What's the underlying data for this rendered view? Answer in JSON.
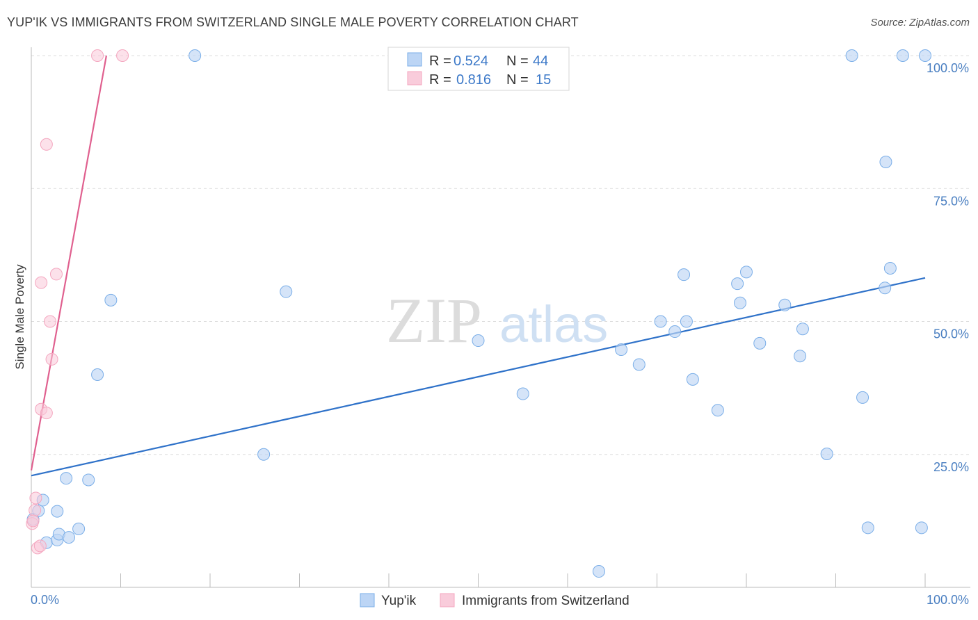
{
  "title": "YUP'IK VS IMMIGRANTS FROM SWITZERLAND SINGLE MALE POVERTY CORRELATION CHART",
  "source": "Source: ZipAtlas.com",
  "watermark": {
    "zip": "ZIP",
    "atlas": "atlas"
  },
  "chart_data": {
    "type": "scatter",
    "title": "YUP'IK VS IMMIGRANTS FROM SWITZERLAND SINGLE MALE POVERTY CORRELATION CHART",
    "xlabel": "",
    "ylabel": "Single Male Poverty",
    "xlim": [
      0,
      100
    ],
    "ylim": [
      0,
      102
    ],
    "x_tick_labels": [
      "0.0%",
      "100.0%"
    ],
    "y_ticks": [
      {
        "value": 25,
        "label": "25.0%"
      },
      {
        "value": 50,
        "label": "50.0%"
      },
      {
        "value": 75,
        "label": "75.0%"
      },
      {
        "value": 100,
        "label": "100.0%"
      }
    ],
    "grid": "horizontal dashed",
    "legend_placement": "top-center",
    "series": [
      {
        "name": "Yup'ik",
        "color": "#7aaee8",
        "line_color": "#2f72c9",
        "stats": {
          "r_label": "R =",
          "r": "0.524",
          "n_label": "N =",
          "n": "44"
        },
        "trend": {
          "x": [
            0,
            100
          ],
          "y": [
            21.0,
            58.2
          ]
        },
        "points": [
          {
            "x": 0.2,
            "y": 12.8
          },
          {
            "x": 0.8,
            "y": 14.4
          },
          {
            "x": 1.3,
            "y": 16.4
          },
          {
            "x": 2.9,
            "y": 14.3
          },
          {
            "x": 1.7,
            "y": 8.4
          },
          {
            "x": 2.9,
            "y": 8.9
          },
          {
            "x": 3.1,
            "y": 10.0
          },
          {
            "x": 4.2,
            "y": 9.4
          },
          {
            "x": 5.3,
            "y": 11.0
          },
          {
            "x": 3.9,
            "y": 20.5
          },
          {
            "x": 6.4,
            "y": 20.2
          },
          {
            "x": 7.4,
            "y": 40.0
          },
          {
            "x": 8.9,
            "y": 54.0
          },
          {
            "x": 18.3,
            "y": 100.0
          },
          {
            "x": 26.0,
            "y": 25.0
          },
          {
            "x": 28.5,
            "y": 55.6
          },
          {
            "x": 50.0,
            "y": 46.4
          },
          {
            "x": 55.0,
            "y": 36.4
          },
          {
            "x": 63.5,
            "y": 3.0
          },
          {
            "x": 66.0,
            "y": 44.7
          },
          {
            "x": 68.0,
            "y": 41.9
          },
          {
            "x": 70.4,
            "y": 50.0
          },
          {
            "x": 72.0,
            "y": 48.1
          },
          {
            "x": 73.0,
            "y": 58.8
          },
          {
            "x": 73.3,
            "y": 50.0
          },
          {
            "x": 74.0,
            "y": 39.1
          },
          {
            "x": 76.8,
            "y": 33.3
          },
          {
            "x": 79.0,
            "y": 57.1
          },
          {
            "x": 79.3,
            "y": 53.5
          },
          {
            "x": 80.0,
            "y": 59.3
          },
          {
            "x": 81.5,
            "y": 45.9
          },
          {
            "x": 84.3,
            "y": 53.1
          },
          {
            "x": 86.0,
            "y": 43.5
          },
          {
            "x": 86.3,
            "y": 48.6
          },
          {
            "x": 89.0,
            "y": 25.1
          },
          {
            "x": 91.8,
            "y": 100.0
          },
          {
            "x": 93.0,
            "y": 35.7
          },
          {
            "x": 93.6,
            "y": 11.2
          },
          {
            "x": 95.6,
            "y": 80.0
          },
          {
            "x": 95.5,
            "y": 56.3
          },
          {
            "x": 96.1,
            "y": 60.0
          },
          {
            "x": 97.5,
            "y": 100.0
          },
          {
            "x": 99.6,
            "y": 11.2
          },
          {
            "x": 100.0,
            "y": 100.0
          }
        ]
      },
      {
        "name": "Immigrants from Switzerland",
        "color": "#f4a6bf",
        "line_color": "#e0608f",
        "stats": {
          "r_label": "R =",
          "r": "0.816",
          "n_label": "N =",
          "n": "15"
        },
        "trend": {
          "x": [
            0,
            8.4
          ],
          "y": [
            22.0,
            100.0
          ]
        },
        "points": [
          {
            "x": 0.1,
            "y": 12.0
          },
          {
            "x": 0.4,
            "y": 14.5
          },
          {
            "x": 0.5,
            "y": 16.8
          },
          {
            "x": 0.7,
            "y": 7.4
          },
          {
            "x": 1.0,
            "y": 7.8
          },
          {
            "x": 1.1,
            "y": 33.5
          },
          {
            "x": 1.1,
            "y": 57.3
          },
          {
            "x": 1.7,
            "y": 83.3
          },
          {
            "x": 1.7,
            "y": 32.8
          },
          {
            "x": 2.1,
            "y": 50.0
          },
          {
            "x": 2.3,
            "y": 42.9
          },
          {
            "x": 2.8,
            "y": 58.9
          },
          {
            "x": 7.4,
            "y": 100.0
          },
          {
            "x": 10.2,
            "y": 100.0
          },
          {
            "x": 0.2,
            "y": 12.5
          }
        ]
      }
    ]
  }
}
